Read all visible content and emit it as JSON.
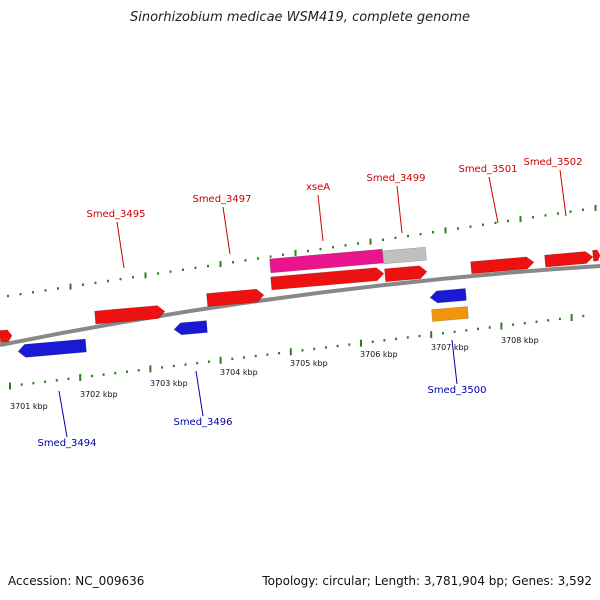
{
  "title": "Sinorhizobium medicae WSM419, complete genome",
  "footer": {
    "accession": "Accession: NC_009636",
    "summary": "Topology: circular; Length: 3,781,904 bp; Genes: 3,592"
  },
  "colors": {
    "forward_gene": "#ee1111",
    "reverse_gene": "#1a1ad6",
    "rna_gene": "#f0950a",
    "highlight_gene": "#e8158f",
    "grey_gene": "#c0c0c0",
    "backbone": "#888888",
    "tick": "#2e7d1e",
    "forward_label": "#cc0000",
    "reverse_label": "#0000aa"
  },
  "ticks": [
    {
      "label": "3701 kbp"
    },
    {
      "label": "3702 kbp"
    },
    {
      "label": "3703 kbp"
    },
    {
      "label": "3704 kbp"
    },
    {
      "label": "3705 kbp"
    },
    {
      "label": "3706 kbp"
    },
    {
      "label": "3707 kbp"
    },
    {
      "label": "3708 kbp"
    }
  ],
  "gene_labels": [
    {
      "text": "Smed_3495",
      "strand": "forward"
    },
    {
      "text": "Smed_3497",
      "strand": "forward"
    },
    {
      "text": "xseA",
      "strand": "forward"
    },
    {
      "text": "Smed_3499",
      "strand": "forward"
    },
    {
      "text": "Smed_3501",
      "strand": "forward"
    },
    {
      "text": "Smed_3502",
      "strand": "forward"
    },
    {
      "text": "Smed_3494",
      "strand": "reverse"
    },
    {
      "text": "Smed_3496",
      "strand": "reverse"
    },
    {
      "text": "Smed_3500",
      "strand": "reverse"
    }
  ]
}
